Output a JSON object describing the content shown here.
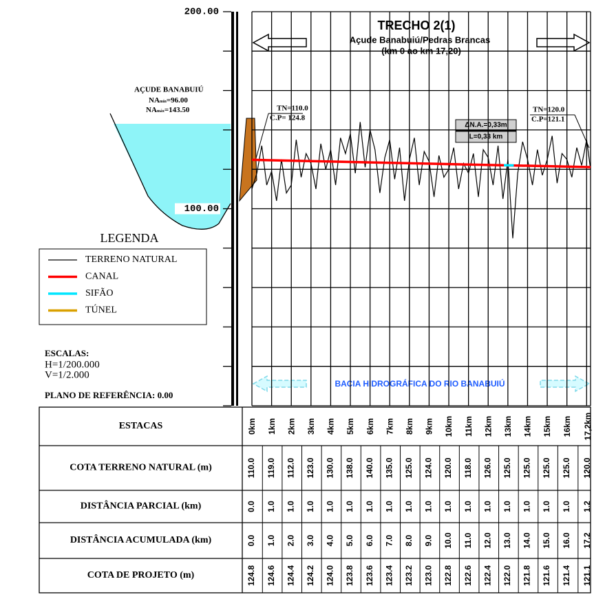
{
  "title": {
    "heading": "TRECHO 2(1)",
    "subtitle": "Açude Banabuiú/Pedras Brancas",
    "range": "(km 0 ao km 17,20)"
  },
  "reservoir": {
    "name": "AÇUDE BANABUIÚ",
    "levels": [
      {
        "label": "NA",
        "sub": "mín",
        "value": "=96.00"
      },
      {
        "label": "NA",
        "sub": "máx",
        "value": "=143.50"
      }
    ]
  },
  "profile": {
    "xlim": [
      0,
      17.2
    ],
    "ylim": [
      0,
      200
    ],
    "yticks": [
      {
        "value": 200,
        "label": "200.00"
      },
      {
        "value": 100,
        "label": "100.00"
      }
    ],
    "grid_y": [
      0,
      20,
      40,
      60,
      80,
      100,
      120,
      140,
      160,
      180,
      200
    ],
    "grid_x": [
      0,
      1,
      2,
      3,
      4,
      5,
      6,
      7,
      8,
      9,
      10,
      11,
      12,
      13,
      14,
      15,
      16,
      17,
      17.2
    ],
    "series": [
      {
        "name": "TERRENO NATURAL",
        "color": "#000000",
        "x": [
          0,
          0.25,
          0.5,
          0.75,
          1,
          1.25,
          1.5,
          1.75,
          2,
          2.25,
          2.5,
          2.75,
          3,
          3.25,
          3.5,
          3.75,
          4,
          4.25,
          4.5,
          4.75,
          5,
          5.25,
          5.5,
          5.75,
          6,
          6.25,
          6.5,
          6.75,
          7,
          7.25,
          7.5,
          7.75,
          8,
          8.25,
          8.5,
          8.75,
          9,
          9.25,
          9.5,
          9.75,
          10,
          10.25,
          10.5,
          10.75,
          11,
          11.25,
          11.5,
          11.75,
          12,
          12.25,
          12.5,
          12.75,
          13,
          13.25,
          13.5,
          13.75,
          14,
          14.25,
          14.5,
          14.75,
          15,
          15.25,
          15.5,
          15.75,
          16,
          16.25,
          16.5,
          16.75,
          17,
          17.2
        ],
        "values": [
          110,
          118,
          132,
          112,
          119,
          104,
          125,
          108,
          112,
          135,
          116,
          128,
          123,
          110,
          133,
          120,
          130,
          112,
          136,
          128,
          138,
          118,
          144,
          121,
          140,
          130,
          108,
          126,
          135,
          115,
          131,
          104,
          125,
          136,
          112,
          129,
          124,
          106,
          127,
          116,
          120,
          131,
          110,
          123,
          118,
          128,
          106,
          130,
          126,
          112,
          132,
          105,
          125,
          85,
          118,
          134,
          125,
          112,
          130,
          117,
          125,
          137,
          113,
          128,
          125,
          116,
          131,
          122,
          135,
          120
        ]
      },
      {
        "name": "CANAL",
        "color": "#ff0000",
        "x": [
          0,
          17.2
        ],
        "values": [
          124.8,
          121.1
        ]
      },
      {
        "name": "SIFÃO",
        "color": "#00e5ff",
        "x": [
          12.8,
          13.3
        ],
        "values": [
          122.1,
          122.0
        ]
      },
      {
        "name": "TÚNEL",
        "color": "#d9a000"
      }
    ],
    "annotations": {
      "tn_start": "TN=110.0",
      "cp_start": "C.P= 124.8",
      "tn_end": "TN=120.0",
      "cp_end": "C.P=121.1",
      "dna": "ΔN.A.=0,33m",
      "length": "L=0,33 km",
      "basin": "BACIA HIDROGRÁFICA DO RIO BANABUIÚ"
    }
  },
  "legend_title": "LEGENDA",
  "scales": {
    "heading": "ESCALAS:",
    "h": "H=1/200.000",
    "v": "V=1/2.000",
    "reference": "PLANO DE REFERÊNCIA: 0.00"
  },
  "table": {
    "rows": [
      {
        "header": "ESTACAS",
        "cells": [
          "0km",
          "1km",
          "2km",
          "3km",
          "4km",
          "5km",
          "6km",
          "7km",
          "8km",
          "9km",
          "10km",
          "11km",
          "12km",
          "13km",
          "14km",
          "15km",
          "16km",
          "17,2km"
        ]
      },
      {
        "header": "COTA TERRENO NATURAL (m)",
        "cells": [
          "110.0",
          "119.0",
          "112.0",
          "123.0",
          "130.0",
          "138.0",
          "140.0",
          "135.0",
          "125.0",
          "124.0",
          "120.0",
          "118.0",
          "126.0",
          "125.0",
          "125.0",
          "125.0",
          "125.0",
          "120.0"
        ]
      },
      {
        "header": "DISTÂNCIA PARCIAL (km)",
        "cells": [
          "0.0",
          "1.0",
          "1.0",
          "1.0",
          "1.0",
          "1.0",
          "1.0",
          "1.0",
          "1.0",
          "1.0",
          "1.0",
          "1.0",
          "1.0",
          "1.0",
          "1.0",
          "1.0",
          "1.0",
          "1.2"
        ]
      },
      {
        "header": "DISTÂNCIA ACUMULADA (km)",
        "cells": [
          "0.0",
          "1.0",
          "2.0",
          "3.0",
          "4.0",
          "5.0",
          "6.0",
          "7.0",
          "8.0",
          "9.0",
          "10.0",
          "11.0",
          "12.0",
          "13.0",
          "14.0",
          "15.0",
          "16.0",
          "17.2"
        ]
      },
      {
        "header": "COTA DE PROJETO (m)",
        "cells": [
          "124.8",
          "124.6",
          "124.4",
          "124.2",
          "124.0",
          "123.8",
          "123.6",
          "123.4",
          "123.2",
          "123.0",
          "122.8",
          "122.6",
          "122.4",
          "122.0",
          "121.8",
          "121.6",
          "121.4",
          "121.1"
        ]
      }
    ]
  }
}
